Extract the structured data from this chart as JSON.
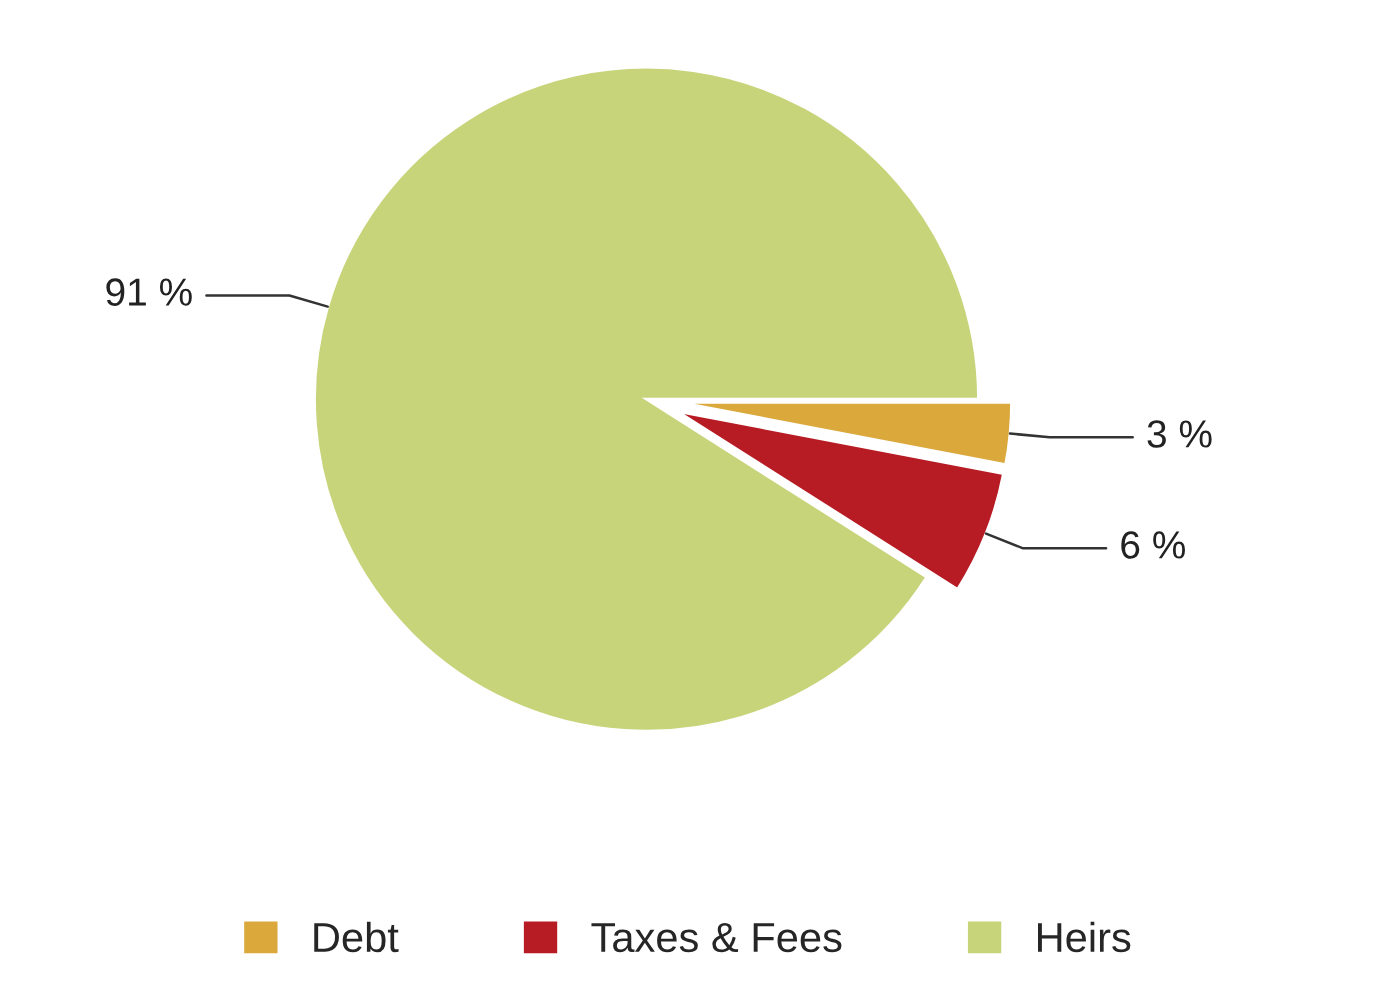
{
  "chart_data": {
    "type": "pie",
    "categories": [
      "Debt",
      "Taxes & Fees",
      "Heirs"
    ],
    "values": [
      3,
      6,
      91
    ],
    "value_labels": [
      "3 %",
      "6 %",
      "91 %"
    ],
    "colors": [
      "#dba83c",
      "#b71c24",
      "#c8d47a"
    ],
    "legend": "bottom"
  }
}
